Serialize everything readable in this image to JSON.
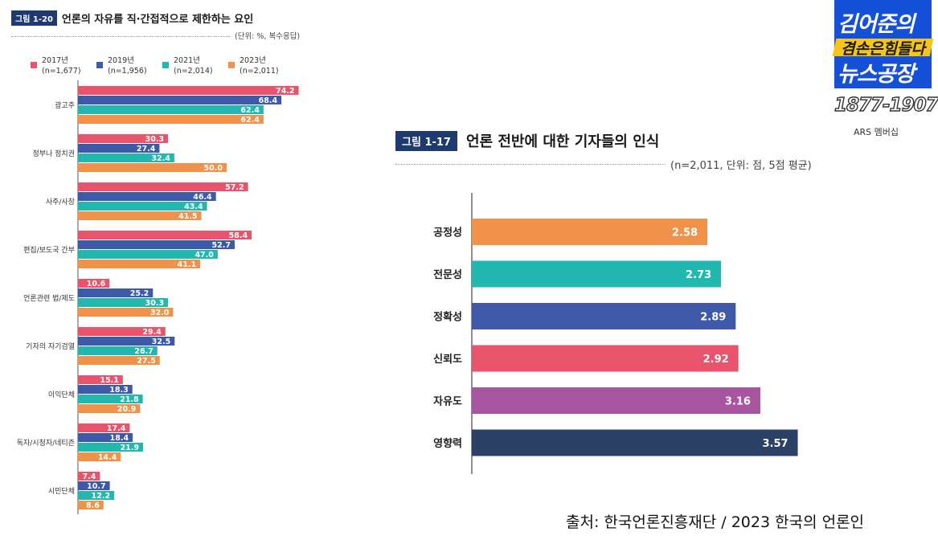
{
  "figure_120": {
    "tag": "그림 1-20",
    "title": "언론의 자유를 직·간접적으로 제한하는 요인",
    "note": "(단위: %, 복수응답)"
  },
  "figure_117": {
    "tag": "그림 1-17",
    "title": "언론 전반에 대한 기자들의 인식",
    "note": "(n=2,011, 단위: 점, 5점 평균)"
  },
  "logo": {
    "line1": "김어준의",
    "line2": "겸손은힘들다",
    "line3": "뉴스공장",
    "phone": "1877-1907",
    "phone_label": "ARS 멤버십"
  },
  "source": "출처: 한국언론진흥재단 / 2023 한국의 언론인",
  "chart_data": [
    {
      "type": "bar",
      "orientation": "horizontal",
      "title": "언론의 자유를 직·간접적으로 제한하는 요인",
      "unit": "%",
      "xlim": [
        0,
        100
      ],
      "categories": [
        "광고주",
        "정부나 정치권",
        "사주/사장",
        "편집/보도국 간부",
        "언론관련 법/제도",
        "기자의 자기검열",
        "이익단체",
        "독자/시청자/네티즌",
        "시민단체"
      ],
      "series": [
        {
          "name": "2017년",
          "sub": "(n=1,677)",
          "color": "#e8546b",
          "values": [
            74.2,
            30.3,
            57.2,
            58.4,
            10.6,
            29.4,
            15.1,
            17.4,
            7.4
          ]
        },
        {
          "name": "2019년",
          "sub": "(n=1,956)",
          "color": "#3d59a8",
          "values": [
            68.4,
            27.4,
            46.4,
            52.7,
            25.2,
            32.5,
            18.3,
            18.4,
            10.7
          ]
        },
        {
          "name": "2021년",
          "sub": "(n=2,014)",
          "color": "#22b8b0",
          "values": [
            62.4,
            32.4,
            43.4,
            47.0,
            30.3,
            26.7,
            21.8,
            21.9,
            12.2
          ]
        },
        {
          "name": "2023년",
          "sub": "(n=2,011)",
          "color": "#f0924a",
          "values": [
            62.4,
            50.0,
            41.5,
            41.1,
            32.0,
            27.5,
            20.9,
            14.4,
            8.6
          ]
        }
      ],
      "value_labels": [
        [
          "74.2",
          "30.3",
          "57.2",
          "58.4",
          "10.6",
          "29.4",
          "15.1",
          "17.4",
          "7.4"
        ],
        [
          "68.4",
          "27.4",
          "46.4",
          "52.7",
          "25.2",
          "32.5",
          "18.3",
          "18.4",
          "10.7"
        ],
        [
          "62.4",
          "32.4",
          "43.4",
          "47.0",
          "30.3",
          "26.7",
          "21.8",
          "21.9",
          "12.2"
        ],
        [
          "62.4",
          "50.0",
          "41.5",
          "41.1",
          "32.0",
          "27.5",
          "20.9",
          "14.4",
          "8.6"
        ]
      ]
    },
    {
      "type": "bar",
      "orientation": "horizontal",
      "title": "언론 전반에 대한 기자들의 인식",
      "unit": "점",
      "xlim": [
        0,
        5
      ],
      "categories": [
        "공정성",
        "전문성",
        "정확성",
        "신뢰도",
        "자유도",
        "영향력"
      ],
      "values": [
        2.58,
        2.73,
        2.89,
        2.92,
        3.16,
        3.57
      ],
      "value_labels": [
        "2.58",
        "2.73",
        "2.89",
        "2.92",
        "3.16",
        "3.57"
      ],
      "colors": [
        "#f0924a",
        "#22b8b0",
        "#3d59a8",
        "#e8546b",
        "#a855a0",
        "#2b4266"
      ]
    }
  ]
}
